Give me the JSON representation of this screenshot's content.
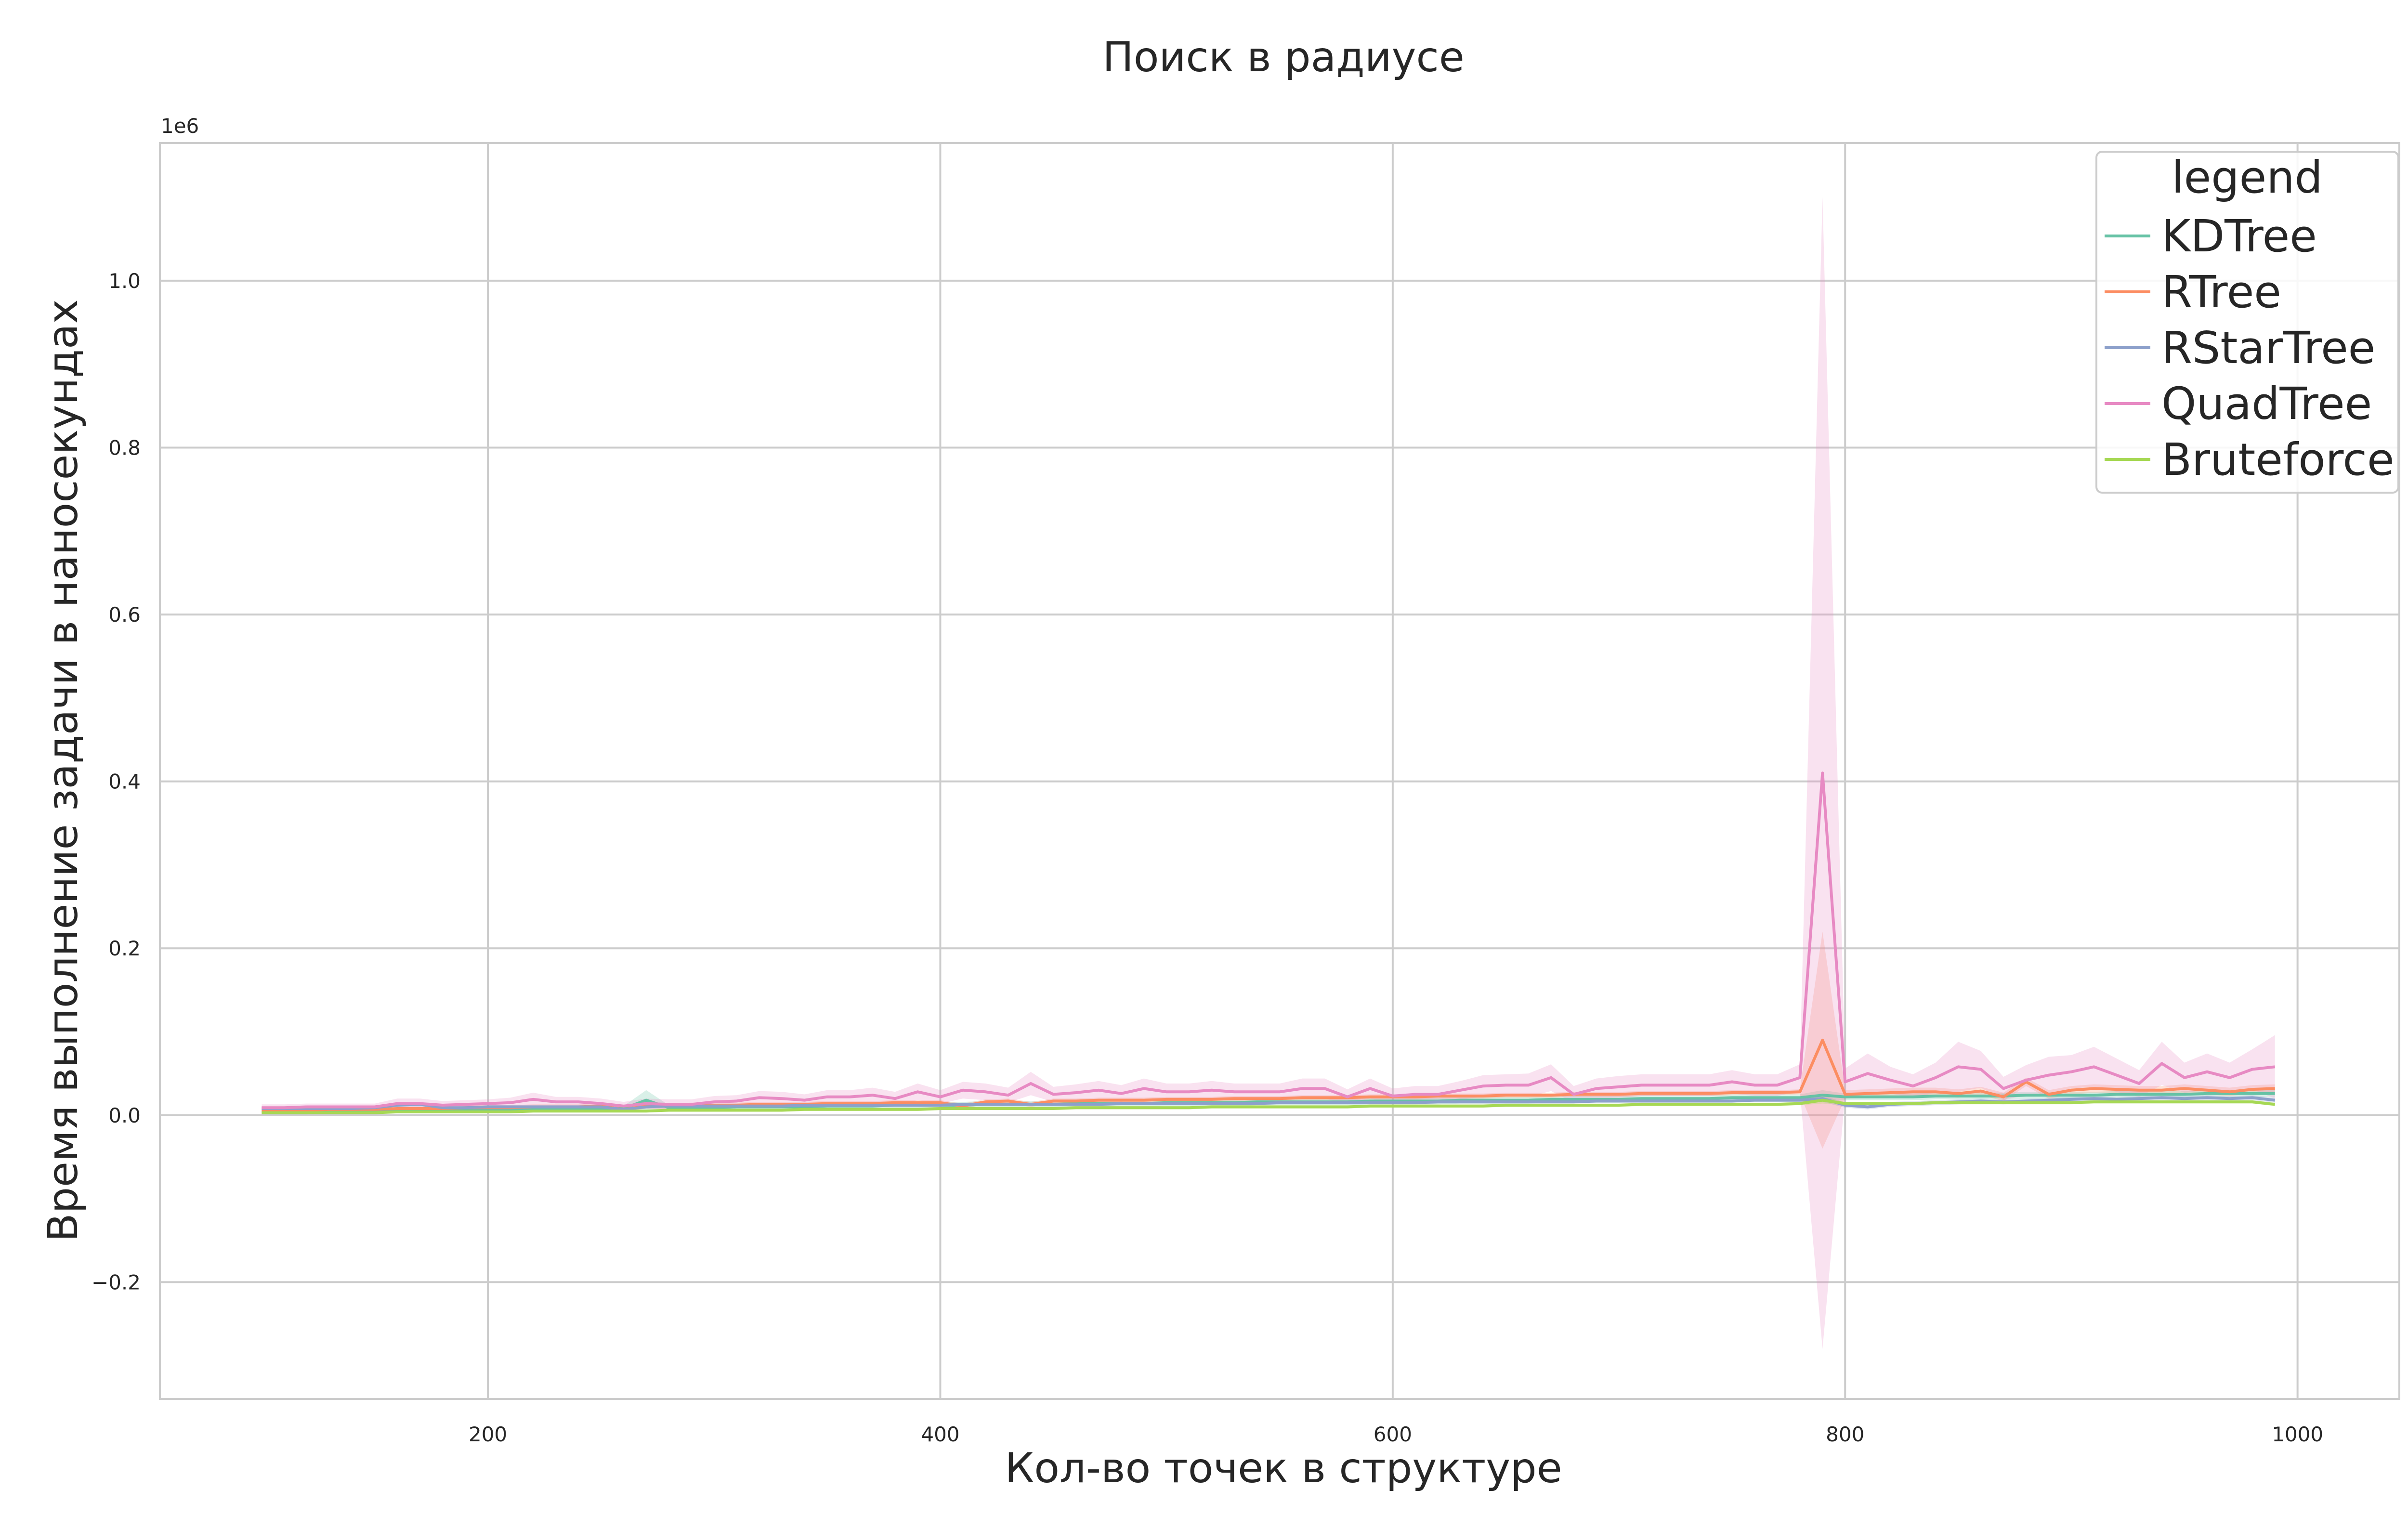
{
  "chart_data": {
    "type": "line",
    "title": "Поиск в радиусе",
    "xlabel": "Кол-во точек в структуре",
    "ylabel": "Время выполнение задачи в наносекундах",
    "y_scale_label": "1e6",
    "xlim": [
      55,
      1045
    ],
    "ylim": [
      -0.34,
      1.165
    ],
    "xticks": [
      200,
      400,
      600,
      800,
      1000
    ],
    "xtick_labels": [
      "200",
      "400",
      "600",
      "800",
      "1000"
    ],
    "yticks": [
      -0.2,
      0.0,
      0.2,
      0.4,
      0.6,
      0.8,
      1.0
    ],
    "ytick_labels": [
      "−0.2",
      "0.0",
      "0.2",
      "0.4",
      "0.6",
      "0.8",
      "1.0"
    ],
    "grid": true,
    "legend_title": "legend",
    "legend_position": "top-right",
    "x": [
      100,
      110,
      120,
      130,
      140,
      150,
      160,
      170,
      180,
      190,
      200,
      210,
      220,
      230,
      240,
      250,
      260,
      270,
      280,
      290,
      300,
      310,
      320,
      330,
      340,
      350,
      360,
      370,
      380,
      390,
      400,
      410,
      420,
      430,
      440,
      450,
      460,
      470,
      480,
      490,
      500,
      510,
      520,
      530,
      540,
      550,
      560,
      570,
      580,
      590,
      600,
      610,
      620,
      630,
      640,
      650,
      660,
      670,
      680,
      690,
      700,
      710,
      720,
      730,
      740,
      750,
      760,
      770,
      780,
      790,
      800,
      810,
      820,
      830,
      840,
      850,
      860,
      870,
      880,
      890,
      900,
      910,
      920,
      930,
      940,
      950,
      960,
      970,
      980,
      990
    ],
    "series": [
      {
        "name": "KDTree",
        "color": "#66c2a5",
        "values": [
          0.004,
          0.004,
          0.004,
          0.005,
          0.005,
          0.005,
          0.006,
          0.006,
          0.006,
          0.006,
          0.006,
          0.007,
          0.007,
          0.007,
          0.007,
          0.008,
          0.008,
          0.018,
          0.009,
          0.009,
          0.009,
          0.01,
          0.01,
          0.01,
          0.01,
          0.011,
          0.011,
          0.011,
          0.012,
          0.012,
          0.012,
          0.012,
          0.013,
          0.013,
          0.013,
          0.013,
          0.014,
          0.014,
          0.014,
          0.014,
          0.015,
          0.015,
          0.015,
          0.015,
          0.016,
          0.016,
          0.016,
          0.016,
          0.016,
          0.017,
          0.017,
          0.017,
          0.017,
          0.018,
          0.018,
          0.018,
          0.018,
          0.019,
          0.019,
          0.019,
          0.019,
          0.02,
          0.02,
          0.02,
          0.02,
          0.021,
          0.021,
          0.021,
          0.021,
          0.024,
          0.022,
          0.022,
          0.022,
          0.022,
          0.023,
          0.023,
          0.023,
          0.023,
          0.024,
          0.024,
          0.024,
          0.024,
          0.025,
          0.025,
          0.025,
          0.025,
          0.026,
          0.026,
          0.026,
          0.026
        ],
        "band": [
          0.003,
          0.003,
          0.003,
          0.003,
          0.003,
          0.003,
          0.003,
          0.003,
          0.003,
          0.003,
          0.003,
          0.003,
          0.003,
          0.003,
          0.003,
          0.003,
          0.003,
          0.012,
          0.003,
          0.003,
          0.004,
          0.004,
          0.004,
          0.004,
          0.004,
          0.004,
          0.004,
          0.004,
          0.004,
          0.004,
          0.004,
          0.004,
          0.004,
          0.004,
          0.004,
          0.004,
          0.004,
          0.004,
          0.004,
          0.004,
          0.004,
          0.004,
          0.004,
          0.004,
          0.004,
          0.004,
          0.004,
          0.004,
          0.004,
          0.004,
          0.004,
          0.004,
          0.004,
          0.004,
          0.004,
          0.004,
          0.004,
          0.004,
          0.004,
          0.004,
          0.004,
          0.004,
          0.004,
          0.004,
          0.004,
          0.004,
          0.004,
          0.004,
          0.004,
          0.006,
          0.004,
          0.004,
          0.004,
          0.004,
          0.004,
          0.004,
          0.004,
          0.004,
          0.004,
          0.004,
          0.004,
          0.004,
          0.004,
          0.004,
          0.004,
          0.004,
          0.004,
          0.004,
          0.004,
          0.004
        ]
      },
      {
        "name": "RTree",
        "color": "#fc8d62",
        "values": [
          0.006,
          0.006,
          0.006,
          0.007,
          0.007,
          0.007,
          0.008,
          0.008,
          0.008,
          0.009,
          0.009,
          0.009,
          0.01,
          0.01,
          0.01,
          0.011,
          0.007,
          0.011,
          0.011,
          0.012,
          0.012,
          0.012,
          0.013,
          0.013,
          0.013,
          0.014,
          0.014,
          0.014,
          0.015,
          0.015,
          0.015,
          0.011,
          0.016,
          0.017,
          0.013,
          0.017,
          0.017,
          0.018,
          0.018,
          0.018,
          0.019,
          0.019,
          0.019,
          0.02,
          0.02,
          0.02,
          0.021,
          0.021,
          0.021,
          0.022,
          0.022,
          0.022,
          0.023,
          0.023,
          0.023,
          0.024,
          0.024,
          0.024,
          0.025,
          0.025,
          0.025,
          0.026,
          0.026,
          0.026,
          0.026,
          0.027,
          0.027,
          0.027,
          0.028,
          0.09,
          0.025,
          0.026,
          0.027,
          0.028,
          0.028,
          0.026,
          0.029,
          0.022,
          0.04,
          0.025,
          0.03,
          0.032,
          0.031,
          0.03,
          0.03,
          0.032,
          0.03,
          0.028,
          0.031,
          0.032
        ],
        "band": [
          0.002,
          0.002,
          0.002,
          0.002,
          0.002,
          0.002,
          0.002,
          0.002,
          0.002,
          0.003,
          0.003,
          0.003,
          0.003,
          0.003,
          0.003,
          0.003,
          0.003,
          0.003,
          0.003,
          0.003,
          0.003,
          0.003,
          0.003,
          0.003,
          0.003,
          0.003,
          0.003,
          0.003,
          0.003,
          0.003,
          0.003,
          0.003,
          0.003,
          0.003,
          0.003,
          0.003,
          0.003,
          0.003,
          0.003,
          0.003,
          0.003,
          0.003,
          0.003,
          0.003,
          0.003,
          0.003,
          0.003,
          0.003,
          0.003,
          0.003,
          0.003,
          0.003,
          0.003,
          0.003,
          0.003,
          0.003,
          0.003,
          0.003,
          0.003,
          0.003,
          0.003,
          0.003,
          0.003,
          0.003,
          0.003,
          0.003,
          0.003,
          0.003,
          0.003,
          0.13,
          0.005,
          0.005,
          0.005,
          0.005,
          0.005,
          0.005,
          0.005,
          0.005,
          0.005,
          0.005,
          0.005,
          0.005,
          0.005,
          0.005,
          0.005,
          0.005,
          0.005,
          0.005,
          0.005,
          0.005
        ]
      },
      {
        "name": "RStarTree",
        "color": "#8da0cb",
        "values": [
          0.008,
          0.008,
          0.008,
          0.008,
          0.008,
          0.009,
          0.012,
          0.013,
          0.009,
          0.009,
          0.01,
          0.01,
          0.01,
          0.01,
          0.01,
          0.01,
          0.007,
          0.01,
          0.011,
          0.011,
          0.011,
          0.011,
          0.011,
          0.011,
          0.012,
          0.012,
          0.012,
          0.012,
          0.012,
          0.012,
          0.012,
          0.013,
          0.013,
          0.013,
          0.013,
          0.013,
          0.013,
          0.013,
          0.014,
          0.014,
          0.014,
          0.014,
          0.014,
          0.014,
          0.014,
          0.015,
          0.015,
          0.015,
          0.015,
          0.015,
          0.015,
          0.015,
          0.016,
          0.016,
          0.016,
          0.016,
          0.016,
          0.016,
          0.016,
          0.017,
          0.017,
          0.017,
          0.017,
          0.017,
          0.017,
          0.017,
          0.018,
          0.018,
          0.018,
          0.02,
          0.012,
          0.01,
          0.013,
          0.014,
          0.015,
          0.016,
          0.017,
          0.016,
          0.017,
          0.018,
          0.019,
          0.02,
          0.019,
          0.02,
          0.021,
          0.02,
          0.021,
          0.02,
          0.021,
          0.018
        ],
        "band": [
          0.002,
          0.002,
          0.002,
          0.002,
          0.002,
          0.002,
          0.003,
          0.003,
          0.002,
          0.002,
          0.002,
          0.002,
          0.002,
          0.002,
          0.002,
          0.002,
          0.002,
          0.002,
          0.002,
          0.002,
          0.002,
          0.002,
          0.002,
          0.002,
          0.002,
          0.002,
          0.002,
          0.002,
          0.002,
          0.002,
          0.002,
          0.002,
          0.002,
          0.002,
          0.002,
          0.002,
          0.002,
          0.002,
          0.002,
          0.002,
          0.002,
          0.002,
          0.002,
          0.002,
          0.002,
          0.002,
          0.002,
          0.002,
          0.002,
          0.002,
          0.002,
          0.002,
          0.002,
          0.002,
          0.002,
          0.002,
          0.002,
          0.002,
          0.002,
          0.002,
          0.002,
          0.002,
          0.002,
          0.002,
          0.002,
          0.002,
          0.002,
          0.002,
          0.002,
          0.004,
          0.003,
          0.003,
          0.003,
          0.003,
          0.003,
          0.003,
          0.003,
          0.003,
          0.003,
          0.003,
          0.003,
          0.003,
          0.003,
          0.003,
          0.003,
          0.003,
          0.003,
          0.003,
          0.003,
          0.003
        ]
      },
      {
        "name": "QuadTree",
        "color": "#e78ac3",
        "values": [
          0.009,
          0.009,
          0.01,
          0.01,
          0.01,
          0.01,
          0.014,
          0.014,
          0.012,
          0.013,
          0.014,
          0.015,
          0.019,
          0.016,
          0.016,
          0.014,
          0.011,
          0.014,
          0.013,
          0.013,
          0.016,
          0.017,
          0.021,
          0.02,
          0.018,
          0.022,
          0.022,
          0.024,
          0.02,
          0.028,
          0.022,
          0.03,
          0.028,
          0.024,
          0.038,
          0.025,
          0.027,
          0.03,
          0.026,
          0.032,
          0.028,
          0.028,
          0.03,
          0.028,
          0.028,
          0.028,
          0.032,
          0.032,
          0.022,
          0.032,
          0.023,
          0.025,
          0.025,
          0.03,
          0.035,
          0.036,
          0.036,
          0.045,
          0.025,
          0.032,
          0.034,
          0.036,
          0.036,
          0.036,
          0.036,
          0.04,
          0.036,
          0.036,
          0.045,
          0.41,
          0.04,
          0.05,
          0.042,
          0.035,
          0.045,
          0.058,
          0.055,
          0.032,
          0.042,
          0.048,
          0.052,
          0.058,
          0.048,
          0.038,
          0.062,
          0.045,
          0.052,
          0.045,
          0.055,
          0.058
        ],
        "band": [
          0.004,
          0.004,
          0.004,
          0.004,
          0.004,
          0.004,
          0.006,
          0.006,
          0.005,
          0.005,
          0.005,
          0.006,
          0.008,
          0.006,
          0.006,
          0.006,
          0.005,
          0.006,
          0.006,
          0.006,
          0.007,
          0.007,
          0.008,
          0.008,
          0.007,
          0.008,
          0.008,
          0.009,
          0.008,
          0.01,
          0.008,
          0.01,
          0.01,
          0.009,
          0.014,
          0.009,
          0.01,
          0.011,
          0.01,
          0.012,
          0.01,
          0.01,
          0.011,
          0.01,
          0.01,
          0.01,
          0.012,
          0.012,
          0.009,
          0.012,
          0.009,
          0.01,
          0.01,
          0.011,
          0.013,
          0.013,
          0.014,
          0.016,
          0.01,
          0.012,
          0.013,
          0.013,
          0.013,
          0.013,
          0.013,
          0.014,
          0.013,
          0.013,
          0.016,
          0.69,
          0.016,
          0.024,
          0.016,
          0.014,
          0.018,
          0.03,
          0.022,
          0.014,
          0.018,
          0.022,
          0.02,
          0.024,
          0.02,
          0.016,
          0.026,
          0.018,
          0.022,
          0.018,
          0.024,
          0.038
        ]
      },
      {
        "name": "Bruteforce",
        "color": "#a6d854",
        "values": [
          0.003,
          0.003,
          0.003,
          0.003,
          0.003,
          0.003,
          0.004,
          0.004,
          0.004,
          0.004,
          0.004,
          0.004,
          0.005,
          0.005,
          0.005,
          0.005,
          0.005,
          0.005,
          0.006,
          0.006,
          0.006,
          0.006,
          0.006,
          0.006,
          0.007,
          0.007,
          0.007,
          0.007,
          0.007,
          0.007,
          0.008,
          0.008,
          0.008,
          0.008,
          0.008,
          0.008,
          0.009,
          0.009,
          0.009,
          0.009,
          0.009,
          0.009,
          0.01,
          0.01,
          0.01,
          0.01,
          0.01,
          0.01,
          0.01,
          0.011,
          0.011,
          0.011,
          0.011,
          0.011,
          0.011,
          0.012,
          0.012,
          0.012,
          0.012,
          0.012,
          0.012,
          0.013,
          0.013,
          0.013,
          0.013,
          0.013,
          0.013,
          0.013,
          0.014,
          0.018,
          0.014,
          0.014,
          0.014,
          0.014,
          0.015,
          0.015,
          0.015,
          0.015,
          0.015,
          0.015,
          0.015,
          0.016,
          0.016,
          0.016,
          0.016,
          0.016,
          0.016,
          0.016,
          0.016,
          0.013
        ],
        "band": [
          0.001,
          0.001,
          0.001,
          0.001,
          0.001,
          0.001,
          0.001,
          0.001,
          0.001,
          0.001,
          0.001,
          0.001,
          0.001,
          0.001,
          0.001,
          0.001,
          0.001,
          0.001,
          0.002,
          0.002,
          0.002,
          0.002,
          0.002,
          0.002,
          0.002,
          0.002,
          0.002,
          0.002,
          0.002,
          0.002,
          0.002,
          0.002,
          0.002,
          0.002,
          0.002,
          0.002,
          0.002,
          0.002,
          0.002,
          0.002,
          0.002,
          0.002,
          0.002,
          0.002,
          0.002,
          0.002,
          0.002,
          0.002,
          0.002,
          0.002,
          0.002,
          0.002,
          0.002,
          0.002,
          0.002,
          0.002,
          0.002,
          0.002,
          0.002,
          0.002,
          0.002,
          0.002,
          0.002,
          0.002,
          0.002,
          0.002,
          0.002,
          0.002,
          0.002,
          0.004,
          0.002,
          0.002,
          0.002,
          0.002,
          0.002,
          0.002,
          0.002,
          0.002,
          0.002,
          0.002,
          0.002,
          0.002,
          0.002,
          0.002,
          0.002,
          0.002,
          0.002,
          0.002,
          0.002,
          0.002
        ]
      }
    ]
  }
}
